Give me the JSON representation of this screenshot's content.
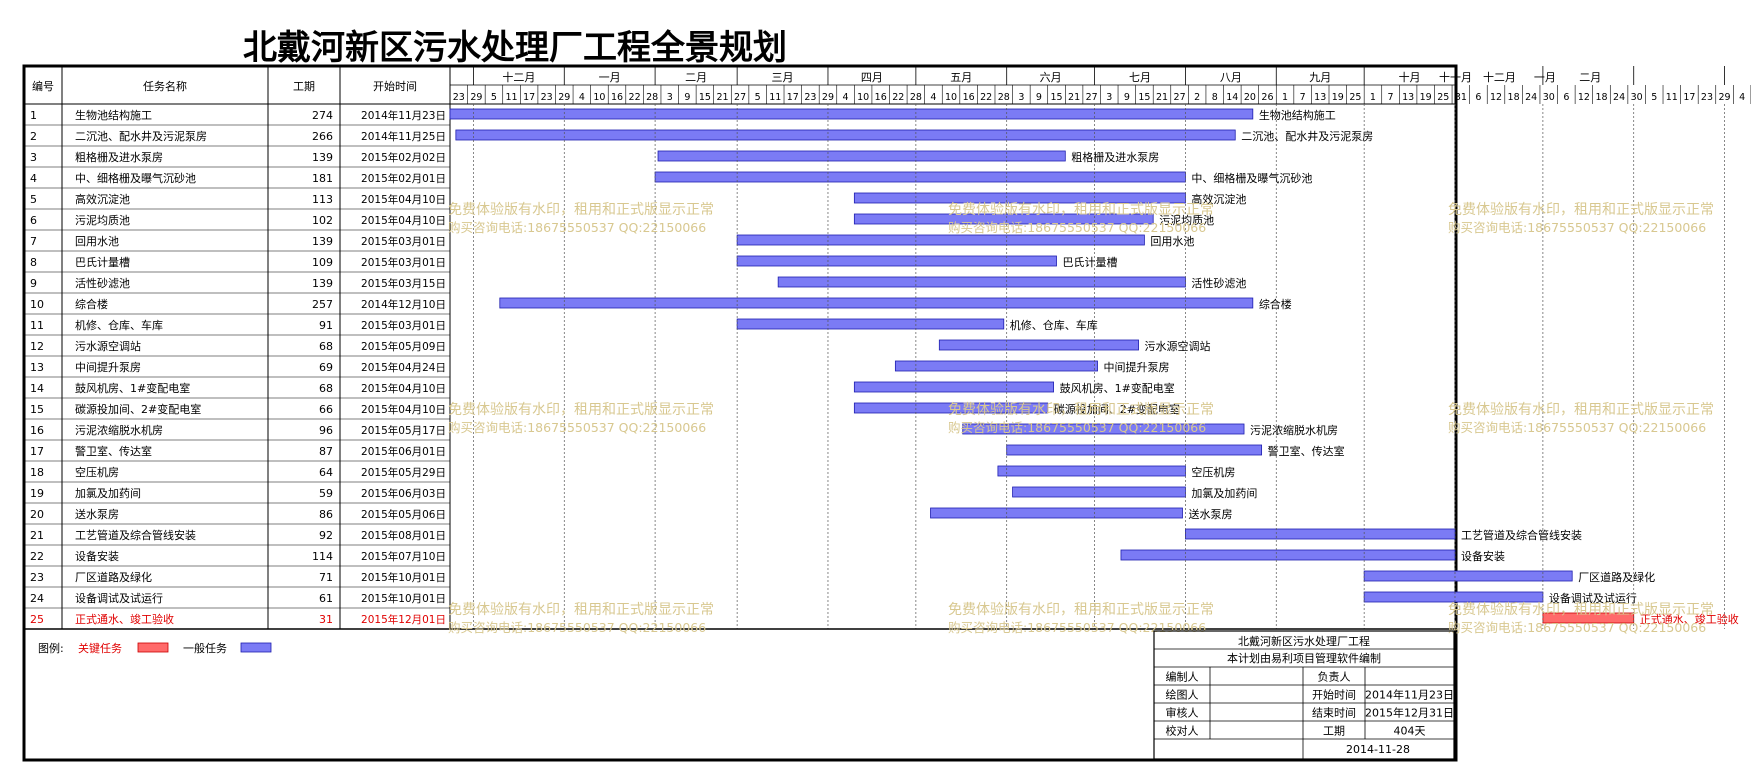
{
  "title": "北戴河新区污水处理厂工程全景规划",
  "chart_data": {
    "type": "gantt",
    "title": "北戴河新区污水处理厂工程全景规划",
    "columns": [
      "编号",
      "任务名称",
      "工期",
      "开始时间"
    ],
    "months": [
      "十二月",
      "一月",
      "二月",
      "三月",
      "四月",
      "五月",
      "六月",
      "七月",
      "八月",
      "九月",
      "十月",
      "十一月",
      "十二月",
      "一月",
      "二月"
    ],
    "day_ticks": [
      "23",
      "29",
      "5",
      "11",
      "17",
      "23",
      "29",
      "4",
      "10",
      "16",
      "22",
      "28",
      "3",
      "9",
      "15",
      "21",
      "27",
      "5",
      "11",
      "17",
      "23",
      "29",
      "4",
      "10",
      "16",
      "22",
      "28",
      "4",
      "10",
      "16",
      "22",
      "28",
      "3",
      "9",
      "15",
      "21",
      "27",
      "3",
      "9",
      "15",
      "21",
      "27",
      "2",
      "8",
      "14",
      "20",
      "26",
      "1",
      "7",
      "13",
      "19",
      "25",
      "1",
      "7",
      "13",
      "19",
      "25",
      "31",
      "6",
      "12",
      "18",
      "24",
      "30",
      "6",
      "12",
      "18",
      "24",
      "30",
      "5",
      "11",
      "17",
      "23",
      "29",
      "4",
      "10",
      "16"
    ],
    "axis_range": [
      "2014-11-23",
      "2016-02-18"
    ],
    "tasks": [
      {
        "id": "1",
        "name": "生物池结构施工",
        "duration": 274,
        "start_label": "2014年11月23日",
        "start": "2014-11-23",
        "critical": false
      },
      {
        "id": "2",
        "name": "二沉池、配水井及污泥泵房",
        "duration": 266,
        "start_label": "2014年11月25日",
        "start": "2014-11-25",
        "critical": false
      },
      {
        "id": "3",
        "name": "粗格栅及进水泵房",
        "duration": 139,
        "start_label": "2015年02月02日",
        "start": "2015-02-02",
        "critical": false
      },
      {
        "id": "4",
        "name": "中、细格栅及曝气沉砂池",
        "duration": 181,
        "start_label": "2015年02月01日",
        "start": "2015-02-01",
        "critical": false
      },
      {
        "id": "5",
        "name": "高效沉淀池",
        "duration": 113,
        "start_label": "2015年04月10日",
        "start": "2015-04-10",
        "critical": false
      },
      {
        "id": "6",
        "name": "污泥均质池",
        "duration": 102,
        "start_label": "2015年04月10日",
        "start": "2015-04-10",
        "critical": false
      },
      {
        "id": "7",
        "name": "回用水池",
        "duration": 139,
        "start_label": "2015年03月01日",
        "start": "2015-03-01",
        "critical": false
      },
      {
        "id": "8",
        "name": "巴氏计量槽",
        "duration": 109,
        "start_label": "2015年03月01日",
        "start": "2015-03-01",
        "critical": false
      },
      {
        "id": "9",
        "name": "活性砂滤池",
        "duration": 139,
        "start_label": "2015年03月15日",
        "start": "2015-03-15",
        "critical": false
      },
      {
        "id": "10",
        "name": "综合楼",
        "duration": 257,
        "start_label": "2014年12月10日",
        "start": "2014-12-10",
        "critical": false
      },
      {
        "id": "11",
        "name": "机修、仓库、车库",
        "duration": 91,
        "start_label": "2015年03月01日",
        "start": "2015-03-01",
        "critical": false
      },
      {
        "id": "12",
        "name": "污水源空调站",
        "duration": 68,
        "start_label": "2015年05月09日",
        "start": "2015-05-09",
        "critical": false
      },
      {
        "id": "13",
        "name": "中间提升泵房",
        "duration": 69,
        "start_label": "2015年04月24日",
        "start": "2015-04-24",
        "critical": false
      },
      {
        "id": "14",
        "name": "鼓风机房、1#变配电室",
        "duration": 68,
        "start_label": "2015年04月10日",
        "start": "2015-04-10",
        "critical": false
      },
      {
        "id": "15",
        "name": "碳源投加间、2#变配电室",
        "duration": 66,
        "start_label": "2015年04月10日",
        "start": "2015-04-10",
        "critical": false
      },
      {
        "id": "16",
        "name": "污泥浓缩脱水机房",
        "duration": 96,
        "start_label": "2015年05月17日",
        "start": "2015-05-17",
        "critical": false
      },
      {
        "id": "17",
        "name": "警卫室、传达室",
        "duration": 87,
        "start_label": "2015年06月01日",
        "start": "2015-06-01",
        "critical": false
      },
      {
        "id": "18",
        "name": "空压机房",
        "duration": 64,
        "start_label": "2015年05月29日",
        "start": "2015-05-29",
        "critical": false
      },
      {
        "id": "19",
        "name": "加氯及加药间",
        "duration": 59,
        "start_label": "2015年06月03日",
        "start": "2015-06-03",
        "critical": false
      },
      {
        "id": "20",
        "name": "送水泵房",
        "duration": 86,
        "start_label": "2015年05月06日",
        "start": "2015-05-06",
        "critical": false
      },
      {
        "id": "21",
        "name": "工艺管道及综合管线安装",
        "duration": 92,
        "start_label": "2015年08月01日",
        "start": "2015-08-01",
        "critical": false
      },
      {
        "id": "22",
        "name": "设备安装",
        "duration": 114,
        "start_label": "2015年07月10日",
        "start": "2015-07-10",
        "critical": false
      },
      {
        "id": "23",
        "name": "厂区道路及绿化",
        "duration": 71,
        "start_label": "2015年10月01日",
        "start": "2015-10-01",
        "critical": false
      },
      {
        "id": "24",
        "name": "设备调试及试运行",
        "duration": 61,
        "start_label": "2015年10月01日",
        "start": "2015-10-01",
        "critical": false
      },
      {
        "id": "25",
        "name": "正式通水、竣工验收",
        "duration": 31,
        "start_label": "2015年12月01日",
        "start": "2015-12-01",
        "critical": true
      }
    ],
    "legend": {
      "label": "图例:",
      "critical": "关键任务",
      "normal": "一般任务"
    },
    "colors": {
      "normal": "#7b7bf5",
      "normal_stroke": "#1f1fb0",
      "critical": "#ff6a6a",
      "critical_stroke": "#cc0000",
      "watermark": "#d8c890"
    }
  },
  "watermark": {
    "line1": "免费体验版有水印，租用和正式版显示正常",
    "line2": "购买咨询电话:18675550537 QQ:22150066"
  },
  "title_block": {
    "project": "北戴河新区污水处理厂工程",
    "subtitle": "本计划由易利项目管理软件编制",
    "rows": [
      [
        "编制人",
        "",
        "负责人",
        ""
      ],
      [
        "绘图人",
        "",
        "开始时间",
        "2014年11月23日"
      ],
      [
        "审核人",
        "",
        "结束时间",
        "2015年12月31日"
      ],
      [
        "校对人",
        "",
        "工期",
        "404天"
      ]
    ],
    "date": "2014-11-28"
  }
}
